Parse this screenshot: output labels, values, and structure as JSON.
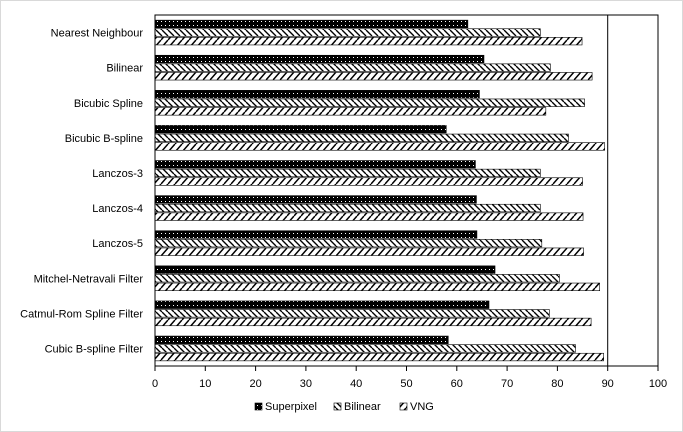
{
  "chart_data": {
    "type": "bar",
    "orientation": "horizontal",
    "categories": [
      "Nearest Neighbour",
      "Bilinear",
      "Bicubic Spline",
      "Bicubic B-spline",
      "Lanczos-3",
      "Lanczos-4",
      "Lanczos-5",
      "Mitchel-Netravali Filter",
      "Catmul-Rom Spline Filter",
      "Cubic B-spline Filter"
    ],
    "series": [
      {
        "name": "Superpixel",
        "values": [
          62.2,
          65.4,
          64.5,
          57.9,
          63.7,
          63.9,
          64.0,
          67.6,
          66.4,
          58.3
        ]
      },
      {
        "name": "Bilinear",
        "values": [
          76.6,
          78.6,
          85.4,
          82.2,
          76.6,
          76.6,
          76.9,
          80.4,
          78.4,
          83.6
        ]
      },
      {
        "name": "VNG",
        "values": [
          84.9,
          86.9,
          77.7,
          89.4,
          85.0,
          85.1,
          85.2,
          88.4,
          86.7,
          89.2
        ]
      }
    ],
    "series_patterns": [
      "dots",
      "hatch-down",
      "hatch-chevron"
    ],
    "xlim": [
      0,
      100
    ],
    "xticks": [
      "0",
      "10",
      "20",
      "30",
      "40",
      "50",
      "60",
      "70",
      "80",
      "90",
      "100"
    ],
    "xlabel": "",
    "ylabel": "",
    "title": "",
    "grid": "vertical gridline at 90 only",
    "legend": "bottom"
  }
}
